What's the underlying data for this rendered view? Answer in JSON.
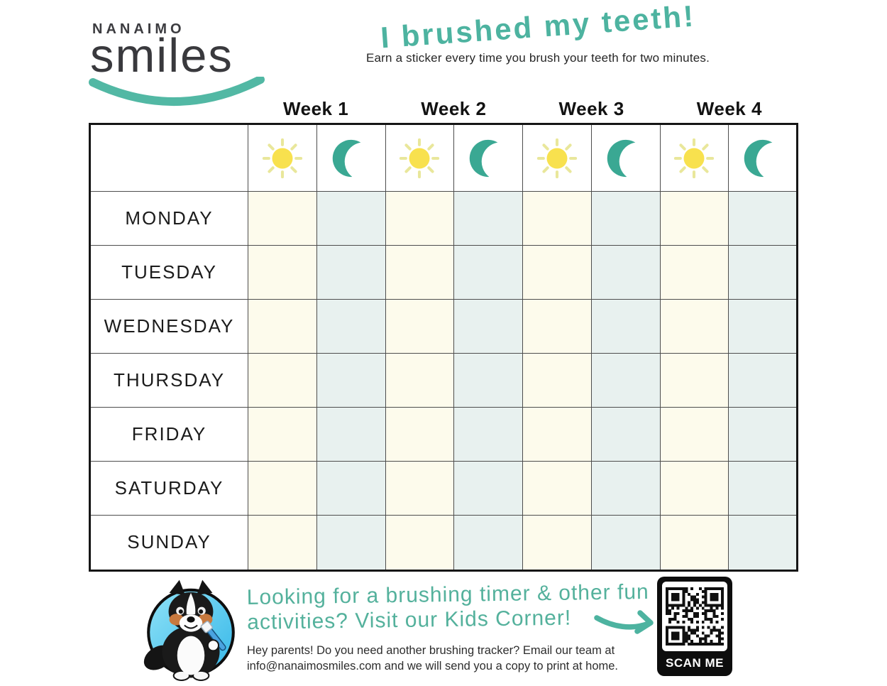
{
  "logo": {
    "name_top": "NANAIMO",
    "name_main": "smiles"
  },
  "header": {
    "title": "I brushed my teeth!",
    "subtitle": "Earn a sticker every time you brush your teeth for two minutes."
  },
  "weeks": [
    "Week 1",
    "Week 2",
    "Week 3",
    "Week 4"
  ],
  "slots_per_week": [
    "day",
    "night"
  ],
  "days": [
    "MONDAY",
    "TUESDAY",
    "WEDNESDAY",
    "THURSDAY",
    "FRIDAY",
    "SATURDAY",
    "SUNDAY"
  ],
  "footer": {
    "promo_line1": "Looking for a brushing timer & other fun",
    "promo_line2": "activities? Visit our Kids Corner!",
    "parents_line1": "Hey parents! Do you need another brushing tracker? Email our team at",
    "parents_line2": "info@nanaimosmiles.com and we will send you a copy to print at home.",
    "qr_label": "SCAN ME"
  },
  "colors": {
    "teal_accent": "#4db3a0",
    "moon_teal": "#3aa893",
    "sun_yellow": "#f8e14e",
    "sun_ray": "#e9e79b",
    "cell_day": "#fdfbec",
    "cell_night": "#e8f1ef"
  }
}
